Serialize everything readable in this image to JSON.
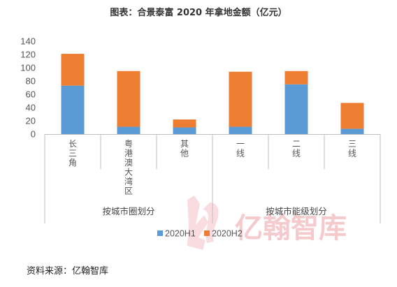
{
  "chart_data": {
    "type": "bar",
    "stacked": true,
    "title": "图表：合景泰富 2020 年拿地金额（亿元）",
    "categories": [
      "长三角",
      "粤港澳大湾区",
      "其他",
      "一线",
      "二线",
      "三线"
    ],
    "groups": [
      {
        "label": "按城市圈划分",
        "categories": [
          "长三角",
          "粤港澳大湾区",
          "其他"
        ]
      },
      {
        "label": "按城市能级划分",
        "categories": [
          "一线",
          "二线",
          "三线"
        ]
      }
    ],
    "series": [
      {
        "name": "2020H1",
        "color": "#5b9bd5",
        "values": [
          73,
          11,
          10,
          11,
          75,
          8
        ]
      },
      {
        "name": "2020H2",
        "color": "#ed7d31",
        "values": [
          48,
          84,
          12,
          83,
          20,
          39
        ]
      }
    ],
    "ylim": [
      0,
      140
    ],
    "yticks": [
      0,
      20,
      40,
      60,
      80,
      100,
      120,
      140
    ],
    "grid": false,
    "legend_position": "bottom"
  },
  "source": "资料来源：亿翰智库",
  "watermark": {
    "text": "亿翰智库",
    "seal_text": "亿翰"
  }
}
